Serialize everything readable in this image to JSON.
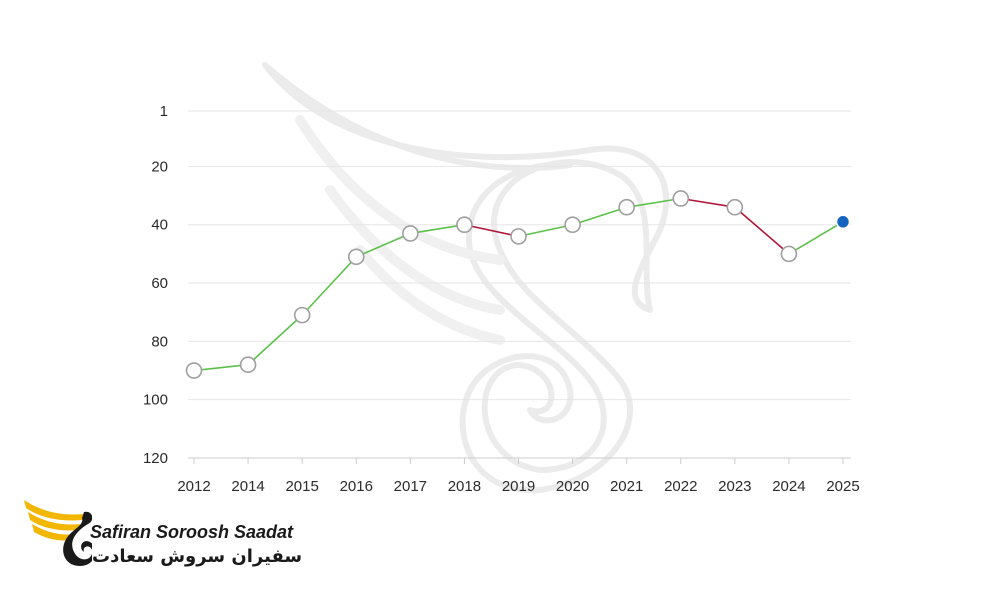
{
  "chart_data": {
    "type": "line",
    "title": "",
    "xlabel": "",
    "ylabel": "",
    "y_inverted": true,
    "ylim": [
      1,
      120
    ],
    "yticks": [
      1,
      20,
      40,
      60,
      80,
      100,
      120
    ],
    "categories": [
      "2012",
      "2014",
      "2015",
      "2016",
      "2017",
      "2018",
      "2019",
      "2020",
      "2021",
      "2022",
      "2023",
      "2024",
      "2025"
    ],
    "values": [
      90,
      88,
      71,
      51,
      43,
      40,
      44,
      40,
      34,
      31,
      34,
      50,
      39
    ],
    "colors": {
      "rise": "#5cc14a",
      "fall": "#b0183a",
      "marker_fill": "#ffffff",
      "marker_stroke": "#9e9e9e",
      "last_marker": "#1565c0",
      "grid": "#e6e6e6",
      "axis": "#cccccc"
    },
    "grid": true
  },
  "logo": {
    "name_en": "Safiran Soroosh Saadat",
    "name_fa": "سفیران سروش سعادت",
    "icon": "swan-wing-logo-icon",
    "colors": {
      "wing": "#f2b705",
      "body": "#1a1a1a"
    }
  },
  "watermark": {
    "icon": "swan-watermark-icon"
  }
}
